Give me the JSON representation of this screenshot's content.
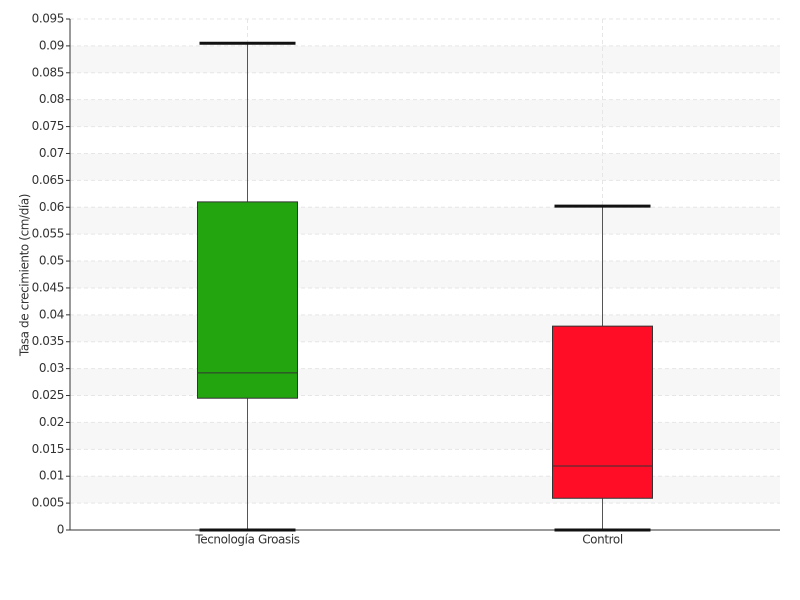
{
  "chart_data": {
    "type": "box",
    "y_label": "Tasa de crecimiento (cm/día)",
    "categories": [
      "Tecnología Groasis",
      "Control"
    ],
    "boxes": [
      {
        "whislo": 0,
        "q1": 0.0245,
        "med": 0.0292,
        "q3": 0.061,
        "whishi": 0.0905,
        "color": "#22a50f"
      },
      {
        "whislo": 0,
        "q1": 0.0059,
        "med": 0.0119,
        "q3": 0.0379,
        "whishi": 0.0602,
        "color": "#ff0d26"
      }
    ],
    "ylim": [
      0,
      0.095
    ],
    "yticks": [
      0,
      0.005,
      0.01,
      0.015,
      0.02,
      0.025,
      0.03,
      0.035,
      0.04,
      0.045,
      0.05,
      0.055,
      0.06,
      0.065,
      0.07,
      0.075,
      0.08,
      0.085,
      0.09,
      0.095
    ],
    "grid": true
  }
}
